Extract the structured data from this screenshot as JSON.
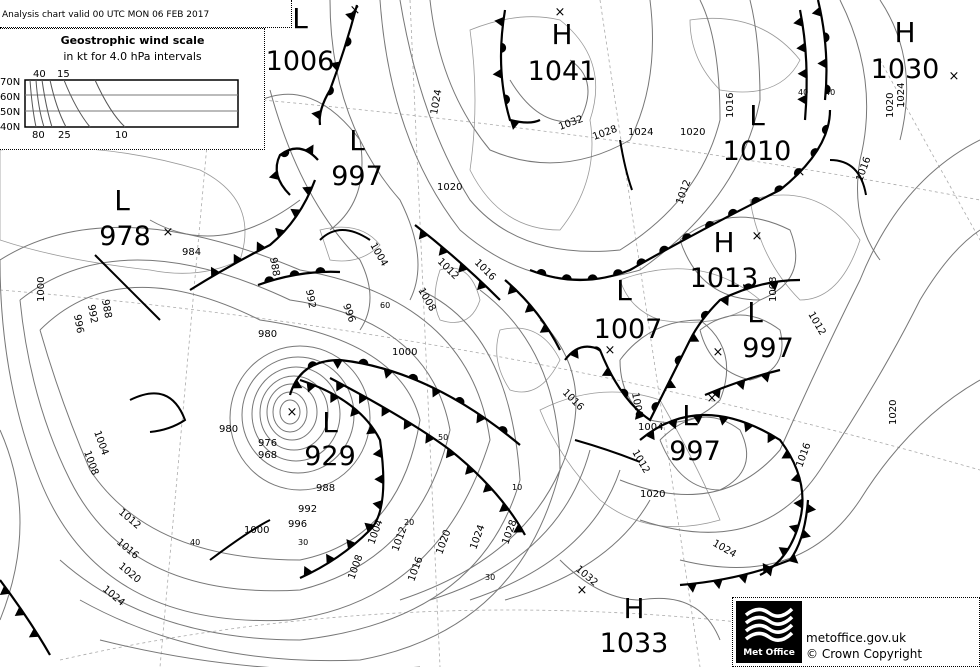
{
  "header": {
    "title": "Analysis chart  valid 00 UTC MON 06  FEB 2017"
  },
  "wind_scale": {
    "title": "Geostrophic wind scale",
    "subtitle": "in kt for 4.0 hPa intervals",
    "lat_labels": [
      "70N",
      "60N",
      "50N",
      "40N"
    ],
    "top_labels": [
      "40",
      "15"
    ],
    "bottom_labels": [
      "80",
      "25",
      "10"
    ]
  },
  "pressure_centres": [
    {
      "type": "L",
      "value": "1006"
    },
    {
      "type": "L",
      "value": "997"
    },
    {
      "type": "L",
      "value": "978"
    },
    {
      "type": "H",
      "value": "1041"
    },
    {
      "type": "H",
      "value": "1030"
    },
    {
      "type": "L",
      "value": "1010"
    },
    {
      "type": "H",
      "value": "1013"
    },
    {
      "type": "L",
      "value": "1007"
    },
    {
      "type": "L",
      "value": "997"
    },
    {
      "type": "L",
      "value": "997"
    },
    {
      "type": "L",
      "value": "929"
    },
    {
      "type": "H",
      "value": "1033"
    }
  ],
  "isobar_labels": [
    "1024",
    "1020",
    "1032",
    "1028",
    "1024",
    "1020",
    "1016",
    "1012",
    "1016",
    "1012",
    "1008",
    "1004",
    "996",
    "992",
    "988",
    "984",
    "1000",
    "980",
    "980",
    "988",
    "992",
    "996",
    "1000",
    "1004",
    "1008",
    "1012",
    "1016",
    "1020",
    "1024",
    "1000",
    "996",
    "992",
    "988",
    "1004",
    "1008",
    "1012",
    "1016",
    "1020",
    "1024",
    "1028",
    "1032",
    "1024",
    "1020",
    "1016",
    "1020",
    "1012",
    "1016",
    "1008",
    "1004",
    "1008",
    "1012",
    "1016",
    "1020",
    "1024",
    "976",
    "968"
  ],
  "wind_labels": [
    "40",
    "60",
    "50",
    "30",
    "20",
    "40",
    "10",
    "30",
    "40"
  ],
  "footer": {
    "logo_text": "Met Office",
    "url": "metoffice.gov.uk",
    "copyright": "© Crown Copyright"
  }
}
